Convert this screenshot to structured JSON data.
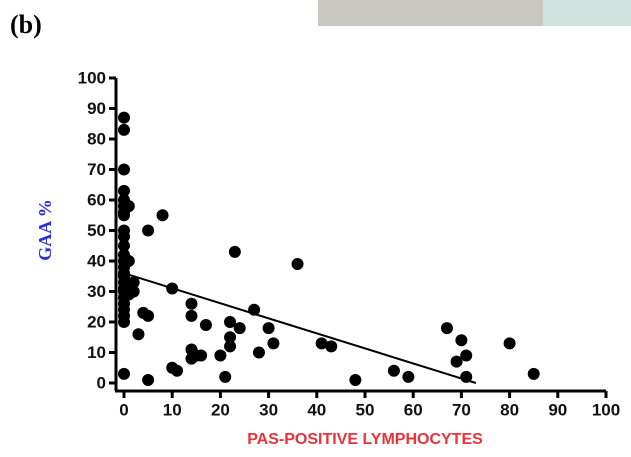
{
  "chart_data": {
    "type": "scatter",
    "title": "(b)",
    "xlabel": "PAS-POSITIVE LYMPHOCYTES",
    "ylabel": "GAA %",
    "xlabel_color": "#e8333a",
    "ylabel_color": "#2b2bd9",
    "color": "#000000",
    "xlim": [
      0,
      100
    ],
    "ylim": [
      0,
      100
    ],
    "xticks": [
      0,
      10,
      20,
      30,
      40,
      50,
      60,
      70,
      80,
      90,
      100
    ],
    "yticks": [
      0,
      10,
      20,
      30,
      40,
      50,
      60,
      70,
      80,
      90,
      100
    ],
    "x": [
      0,
      0,
      0,
      0,
      0,
      0,
      0,
      0,
      0,
      0,
      0,
      0,
      0,
      0,
      0,
      0,
      0,
      0,
      0,
      0,
      0,
      0,
      0,
      0,
      0,
      1,
      1,
      2,
      2,
      1,
      3,
      5,
      8,
      4,
      5,
      5,
      10,
      10,
      11,
      14,
      14,
      14,
      15,
      14,
      16,
      17,
      20,
      21,
      22,
      22,
      22,
      23,
      24,
      27,
      28,
      30,
      31,
      36,
      41,
      43,
      48,
      56,
      59,
      67,
      69,
      70,
      71,
      71,
      80,
      85
    ],
    "y": [
      87,
      83,
      70,
      63,
      60,
      58,
      56,
      55,
      50,
      48,
      45,
      42,
      40,
      38,
      36,
      35,
      33,
      31,
      30,
      28,
      26,
      24,
      22,
      20,
      3,
      58,
      40,
      33,
      30,
      29,
      16,
      50,
      55,
      23,
      22,
      1,
      31,
      5,
      4,
      26,
      22,
      11,
      9,
      8,
      9,
      19,
      9,
      2,
      15,
      20,
      12,
      43,
      18,
      24,
      10,
      18,
      13,
      39,
      13,
      12,
      1,
      4,
      2,
      18,
      7,
      14,
      9,
      2,
      13,
      3
    ],
    "trendline": {
      "x": [
        0,
        73
      ],
      "y": [
        36,
        0
      ]
    }
  }
}
